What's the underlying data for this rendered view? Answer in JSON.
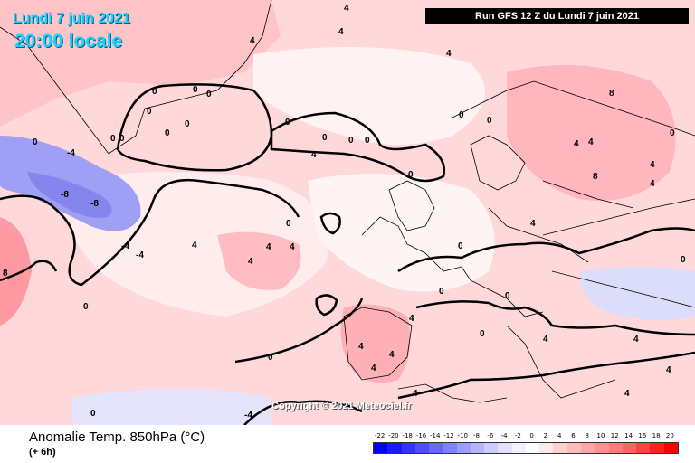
{
  "header": {
    "date": "Lundi 7 juin 2021",
    "local_time": "20:00 locale",
    "run": "Run GFS 12 Z du Lundi 7 juin 2021"
  },
  "copyright": "Copyright © 2021 Meteociel.fr",
  "footer": {
    "field": "Anomalie Temp. 850hPa (°C)",
    "lead": "(+ 6h)"
  },
  "legend": {
    "ticks": [
      "-22",
      "-20",
      "-18",
      "-16",
      "-14",
      "-12",
      "-10",
      "-8",
      "-6",
      "-4",
      "-2",
      "0",
      "2",
      "4",
      "6",
      "8",
      "10",
      "12",
      "14",
      "16",
      "18",
      "20"
    ],
    "colors": [
      "#0000ff",
      "#1a1aff",
      "#3434ff",
      "#4e4eff",
      "#6868ff",
      "#8282ff",
      "#9c9cff",
      "#b4b4ff",
      "#ccccff",
      "#e2e2ff",
      "#f2f2ff",
      "#ffffff",
      "#ffe8e8",
      "#ffd2d2",
      "#ffbcbc",
      "#ffa6a6",
      "#ff9090",
      "#ff7a7a",
      "#ff6464",
      "#ff4444",
      "#ff2222",
      "#ff0000"
    ]
  },
  "map_values": [
    "4",
    "4",
    "4",
    "4",
    "0",
    "0",
    "0",
    "0",
    "0",
    "0",
    "0",
    "0",
    "0",
    "0",
    "0",
    "0",
    "-4",
    "0",
    "0",
    "0",
    "-8",
    "-8",
    "-4",
    "0",
    "-4",
    "4",
    "4",
    "4",
    "0",
    "4",
    "0",
    "4",
    "0",
    "8",
    "8",
    "4",
    "4",
    "4",
    "4",
    "4",
    "4",
    "4",
    "0",
    "4",
    "0",
    "0",
    "0",
    "4",
    "4",
    "4",
    "-4",
    "0",
    "0",
    "4",
    "4",
    "4",
    "8",
    "0"
  ]
}
